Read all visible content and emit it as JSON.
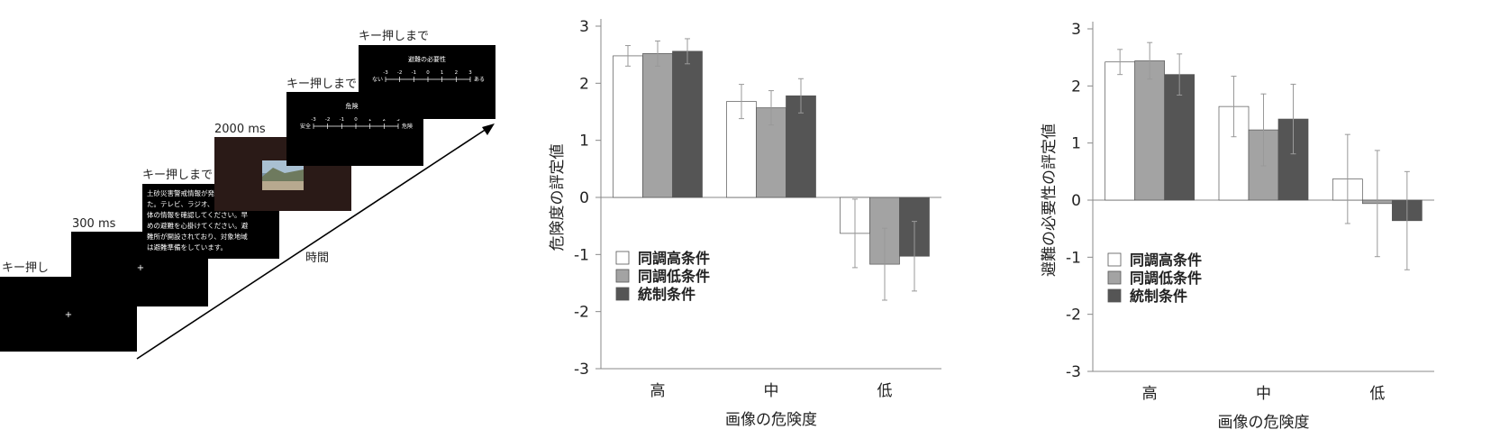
{
  "procedure": {
    "time_label": "時間",
    "frames": [
      {
        "label": "キー押し",
        "content": "+"
      },
      {
        "label": "300 ms",
        "content": "+"
      },
      {
        "label": "キー押しまで",
        "text_lines": [
          "土砂災害警戒情報が発令されまし",
          "た。テレビ、ラジオ、および自治",
          "体の情報を確認してください。早",
          "めの避難を心掛けてください。避",
          "難所が開設されており、対象地域",
          "は避難準備をしています。"
        ]
      },
      {
        "label": "2000 ms",
        "content": "photo"
      },
      {
        "label": "キー押しまで",
        "scale_title": "危険度",
        "scale_ticks": [
          "-3",
          "-2",
          "-1",
          "0",
          "1",
          "2",
          "3"
        ],
        "left_anchor": "安全",
        "right_anchor": "危険"
      },
      {
        "label": "キー押しまで",
        "scale_title": "避難の必要性",
        "scale_ticks": [
          "-3",
          "-2",
          "-1",
          "0",
          "1",
          "2",
          "3"
        ],
        "left_anchor": "ない",
        "right_anchor": "ある"
      }
    ]
  },
  "chart_data": [
    {
      "type": "bar",
      "xlabel": "画像の危険度",
      "ylabel": "危険度の評定値",
      "categories": [
        "高",
        "中",
        "低"
      ],
      "ylim": [
        -3,
        3
      ],
      "yticks": [
        "3",
        "2",
        "1",
        "0",
        "-1",
        "-2",
        "-3"
      ],
      "legend_position": "left-lower",
      "series": [
        {
          "name": "同調高条件",
          "color": "#ffffff",
          "values": [
            2.48,
            1.68,
            -0.63
          ],
          "errors": [
            0.18,
            0.3,
            0.6
          ]
        },
        {
          "name": "同調低条件",
          "color": "#a3a3a3",
          "values": [
            2.52,
            1.57,
            -1.17
          ],
          "errors": [
            0.22,
            0.3,
            0.63
          ]
        },
        {
          "name": "統制条件",
          "color": "#555555",
          "values": [
            2.56,
            1.78,
            -1.03
          ],
          "errors": [
            0.22,
            0.3,
            0.61
          ]
        }
      ]
    },
    {
      "type": "bar",
      "xlabel": "画像の危険度",
      "ylabel": "避難の必要性の評定値",
      "categories": [
        "高",
        "中",
        "低"
      ],
      "ylim": [
        -3,
        3
      ],
      "yticks": [
        "3",
        "2",
        "1",
        "0",
        "-1",
        "-2",
        "-3"
      ],
      "legend_position": "left-lower",
      "series": [
        {
          "name": "同調高条件",
          "color": "#ffffff",
          "values": [
            2.42,
            1.64,
            0.37
          ],
          "errors": [
            0.22,
            0.53,
            0.78
          ]
        },
        {
          "name": "同調低条件",
          "color": "#a3a3a3",
          "values": [
            2.44,
            1.23,
            -0.06
          ],
          "errors": [
            0.32,
            0.63,
            0.93
          ]
        },
        {
          "name": "統制条件",
          "color": "#555555",
          "values": [
            2.2,
            1.42,
            -0.36
          ],
          "errors": [
            0.36,
            0.61,
            0.86
          ]
        }
      ]
    }
  ]
}
